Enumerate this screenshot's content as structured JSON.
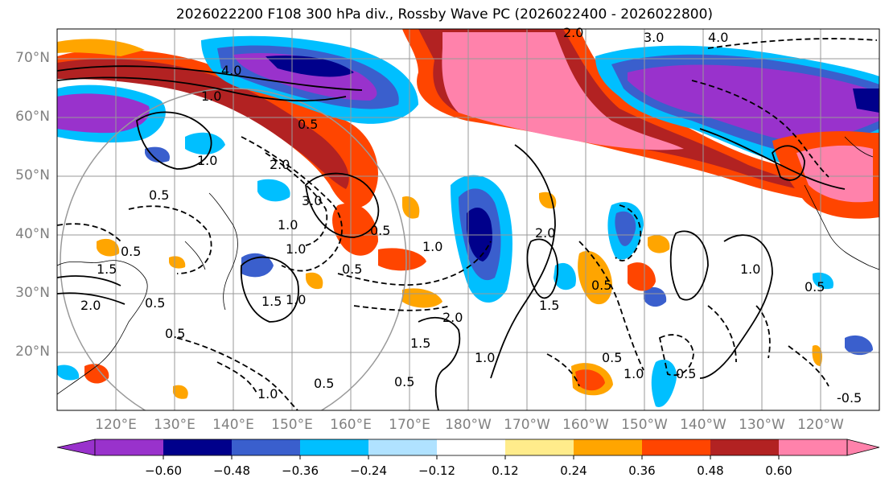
{
  "title": "2026022200 F108 300 hPa div., Rossby Wave PC (2026022400 - 2026022800)",
  "lat_labels": [
    "70°N",
    "60°N",
    "50°N",
    "40°N",
    "30°N",
    "20°N"
  ],
  "lon_labels": [
    "120°E",
    "130°E",
    "140°E",
    "150°E",
    "160°E",
    "170°E",
    "180°W",
    "170°W",
    "160°W",
    "150°W",
    "140°W",
    "130°W",
    "120°W"
  ],
  "colorbar": {
    "ticks": [
      "−0.60",
      "−0.48",
      "−0.36",
      "−0.24",
      "−0.12",
      "0.12",
      "0.24",
      "0.36",
      "0.48",
      "0.60"
    ],
    "colors": [
      "#9932cc",
      "#00008b",
      "#3a5fcd",
      "#00bfff",
      "#b0e2ff",
      "#ffffff",
      "#ffec8b",
      "#ffa500",
      "#ff4500",
      "#b22222",
      "#ff82ab"
    ]
  },
  "contour_labels": [
    "4.0",
    "3.0",
    "4.0",
    "2.0",
    "1.0",
    "0.5",
    "1.0",
    "2.0",
    "3.0",
    "1.0",
    "0.5",
    "0.5",
    "1.5",
    "2.0",
    "1.0",
    "0.5",
    "1.0",
    "2.0",
    "1.5",
    "0.5",
    "1.0",
    "0.5",
    "1.5",
    "1.0",
    "0.5",
    "0.5",
    "1.5",
    "2.0",
    "0.5",
    "1.0",
    "0.5",
    "1.0",
    "0.5",
    "1.0",
    "0.5",
    "0.5",
    "-0.5"
  ]
}
